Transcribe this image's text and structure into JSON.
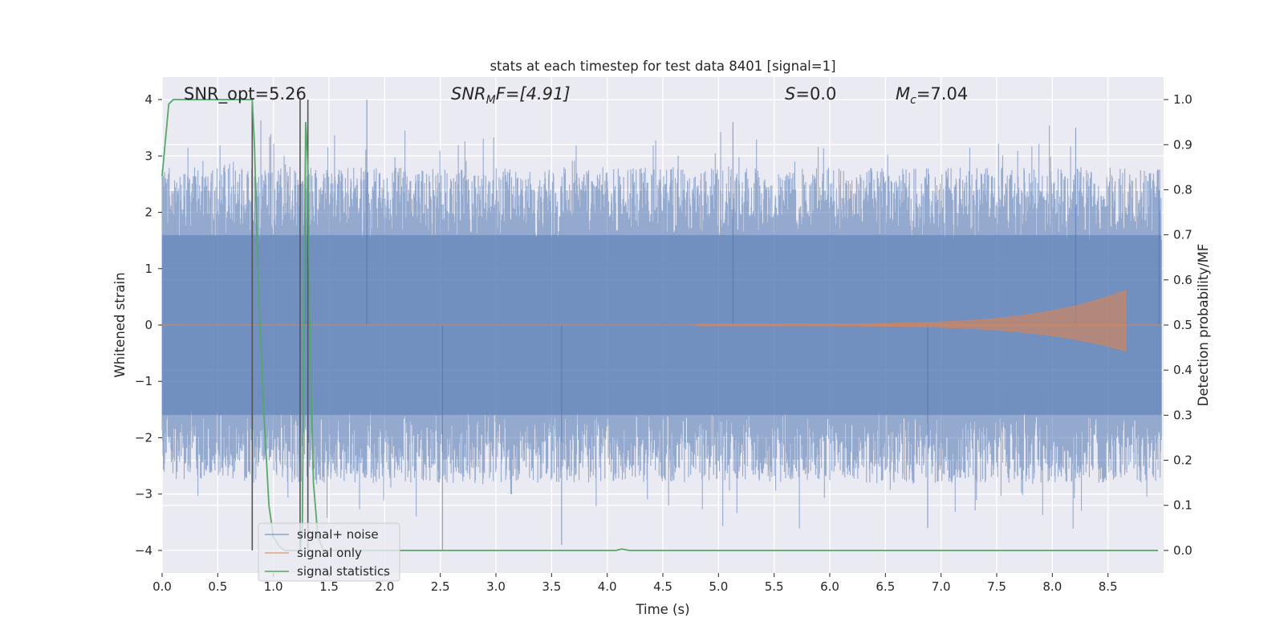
{
  "chart_data": {
    "type": "line",
    "title": "stats at each timestep for test data 8401 [signal=1]",
    "xlabel": "Time (s)",
    "ylabel_left": "Whitened strain",
    "ylabel_right": "Detection probability/MF",
    "xlim": [
      0.0,
      9.0
    ],
    "ylim_left": [
      -4.4,
      4.4
    ],
    "ylim_right": [
      -0.05,
      1.05
    ],
    "xticks": [
      "0.0",
      "0.5",
      "1.0",
      "1.5",
      "2.0",
      "2.5",
      "3.0",
      "3.5",
      "4.0",
      "4.5",
      "5.0",
      "5.5",
      "6.0",
      "6.5",
      "7.0",
      "7.5",
      "8.0",
      "8.5"
    ],
    "xtick_values": [
      0.0,
      0.5,
      1.0,
      1.5,
      2.0,
      2.5,
      3.0,
      3.5,
      4.0,
      4.5,
      5.0,
      5.5,
      6.0,
      6.5,
      7.0,
      7.5,
      8.0,
      8.5
    ],
    "yticks_left": [
      "4",
      "3",
      "2",
      "1",
      "0",
      "−1",
      "−2",
      "−3",
      "−4"
    ],
    "ytick_values_left": [
      4,
      3,
      2,
      1,
      0,
      -1,
      -2,
      -3,
      -4
    ],
    "yticks_right": [
      "1.0",
      "0.9",
      "0.8",
      "0.7",
      "0.6",
      "0.5",
      "0.4",
      "0.3",
      "0.2",
      "0.1",
      "0.0"
    ],
    "ytick_values_right": [
      1.0,
      0.9,
      0.8,
      0.7,
      0.6,
      0.5,
      0.4,
      0.3,
      0.2,
      0.1,
      0.0
    ],
    "grid": true,
    "legend_position": "lower-left",
    "annotations": {
      "snr_opt": "SNR_opt=5.26",
      "snr_mf_pre": "SNR",
      "snr_mf_sub": "M",
      "snr_mf_post": "F=[4.91]",
      "s_pre": "S",
      "s_post": "=0.0",
      "mc_pre": "M",
      "mc_sub": "c",
      "mc_post": "=7.04"
    },
    "vertical_lines_x": [
      0.81,
      1.24,
      1.31
    ],
    "series": [
      {
        "name": "signal+ noise",
        "color": "#4c72b0",
        "opacity": 0.5,
        "description_values": {
          "envelope_min": -4.0,
          "envelope_max": 4.0,
          "peaks": [
            [
              0.81,
              3.3
            ],
            [
              1.29,
              3.6
            ],
            [
              1.84,
              4.0
            ],
            [
              3.59,
              -3.9
            ],
            [
              2.52,
              -4.0
            ],
            [
              5.13,
              3.6
            ],
            [
              6.88,
              -3.6
            ],
            [
              8.21,
              3.5
            ],
            [
              8.96,
              2.4
            ]
          ]
        }
      },
      {
        "name": "signal only",
        "color": "#dd8452",
        "chirp_start": 4.8,
        "chirp_end": 8.66,
        "chirp_peak_amplitude": 0.6
      },
      {
        "name": "signal statistics",
        "color": "#55a868",
        "x": [
          0.0,
          0.06,
          0.1,
          0.2,
          0.5,
          0.79,
          0.81,
          0.83,
          0.85,
          0.88,
          0.92,
          0.96,
          1.0,
          1.05,
          1.1,
          1.2,
          1.24,
          1.26,
          1.29,
          1.31,
          1.33,
          1.36,
          1.4,
          1.45,
          1.5,
          2.0,
          3.0,
          4.0,
          4.08,
          4.13,
          4.2,
          5.0,
          6.0,
          7.0,
          8.0,
          8.95
        ],
        "y": [
          0.83,
          0.99,
          1.0,
          1.0,
          1.0,
          1.0,
          1.0,
          0.9,
          0.72,
          0.5,
          0.28,
          0.1,
          0.03,
          0.01,
          0.0,
          0.0,
          0.0,
          0.05,
          0.95,
          0.85,
          0.45,
          0.15,
          0.03,
          0.0,
          0.0,
          0.0,
          0.0,
          0.0,
          0.0,
          0.003,
          0.0,
          0.0,
          0.0,
          0.0,
          0.0,
          0.0
        ]
      }
    ]
  }
}
